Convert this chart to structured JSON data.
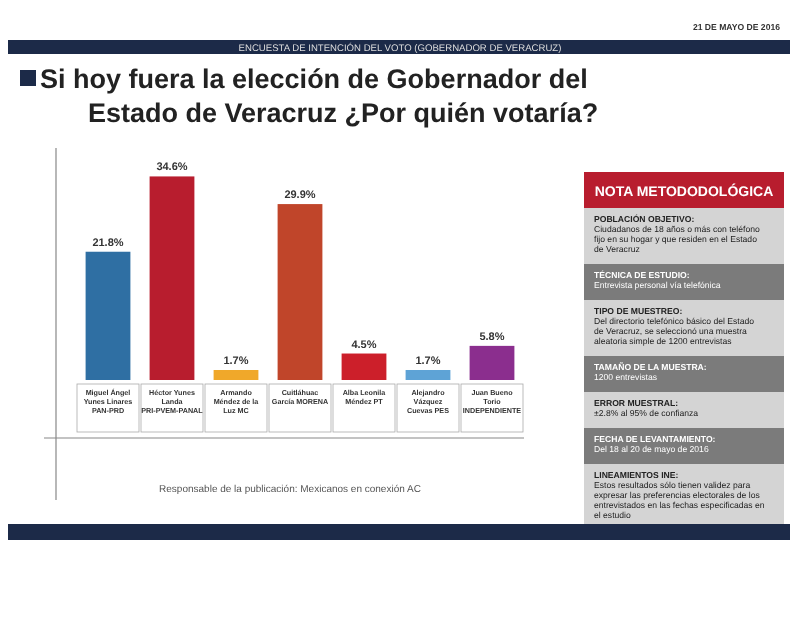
{
  "chart_data": {
    "type": "bar",
    "title": "Si hoy fuera la elección de Gobernador del Estado de Veracruz ¿Por quién votaría?",
    "subtitle": "ENCUESTA DE INTENCIÓN DEL VOTO (GOBERNADOR DE VERACRUZ)",
    "categories": [
      "Miguel Ángel Yunes Linares PAN-PRD",
      "Héctor Yunes Landa PRI-PVEM-PANAL",
      "Armando Méndez de la Luz MC",
      "Cuitláhuac García MORENA",
      "Alba Leonila Méndez PT",
      "Alejandro Vázquez Cuevas PES",
      "Juan Bueno Torio INDEPENDIENTE"
    ],
    "values": [
      21.8,
      34.6,
      1.7,
      29.9,
      4.5,
      1.7,
      5.8
    ],
    "value_labels": [
      "21.8%",
      "34.6%",
      "1.7%",
      "29.9%",
      "4.5%",
      "1.7%",
      "5.8%"
    ],
    "colors": [
      "#2f6fa3",
      "#b81d2e",
      "#f0a82a",
      "#c0452a",
      "#cc1f2a",
      "#5ea3d6",
      "#8b2e8e"
    ],
    "annotations": [
      "21 DE MAYO DE 2016",
      "Responsable de la publicación: Mexicanos en conexión AC",
      "NOTA METODODOLÓGICA",
      "POBLACIÓN OBJETIVO: Ciudadanos de 18 años o más con teléfono fijo en su hogar y que residen en el Estado de Veracruz",
      "TÉCNICA DE ESTUDIO: Entrevista personal vía telefónica",
      "TIPO DE MUESTREO: Del directorio telefónico básico del Estado de Veracruz, se seleccionó una muestra aleatoria simple de 1200 entrevistas",
      "TAMAÑO DE LA MUESTRA: 1200 entrevistas",
      "ERROR MUESTRAL: ±2.8% al 95% de confianza",
      "FECHA DE LEVANTAMIENTO: Del 18 al 20 de mayo de 2016",
      "LINEAMIENTOS INE: Estos resultados sólo tienen validez para expresar las preferencias electorales de los entrevistados en las fechas especificadas en el estudio"
    ]
  }
}
